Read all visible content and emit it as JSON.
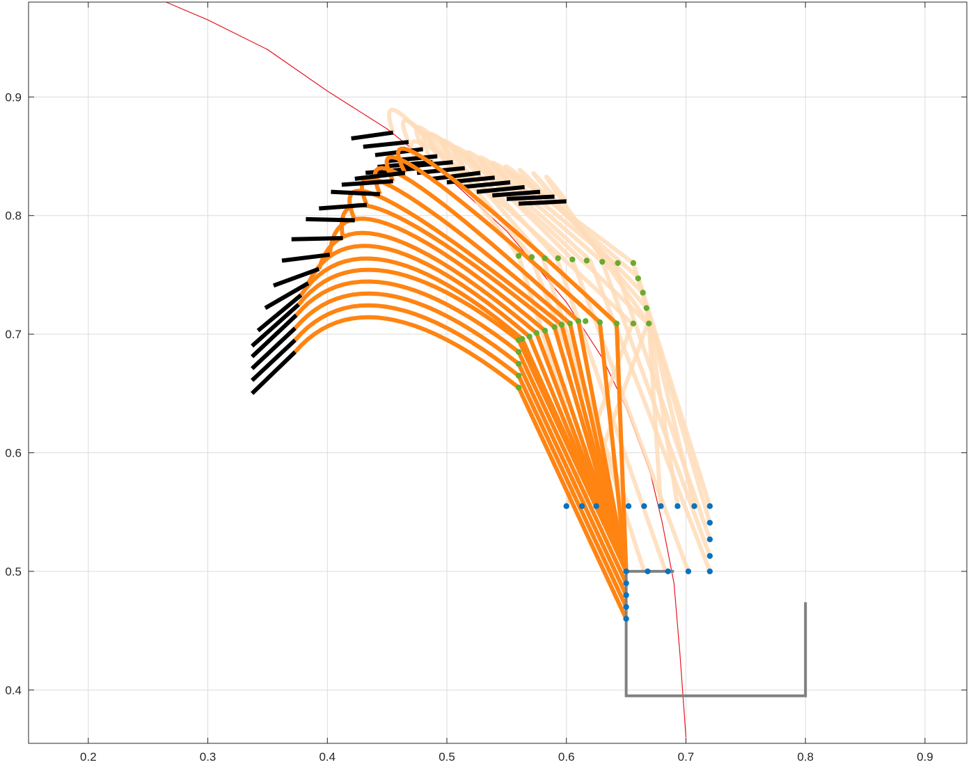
{
  "chart_data": {
    "type": "line",
    "title": "",
    "xlabel": "",
    "ylabel": "",
    "xlim": [
      0.15,
      0.935
    ],
    "ylim": [
      0.355,
      0.98
    ],
    "grid": true,
    "box": true,
    "legend": "none",
    "x_ticks": [
      0.2,
      0.3,
      0.4,
      0.5,
      0.6,
      0.7,
      0.8,
      0.9
    ],
    "y_ticks": [
      0.4,
      0.5,
      0.6,
      0.7,
      0.8,
      0.9
    ],
    "x_tick_labels": [
      "0.2",
      "0.3",
      "0.4",
      "0.5",
      "0.6",
      "0.7",
      "0.8",
      "0.9"
    ],
    "y_tick_labels": [
      "0.4",
      "0.5",
      "0.6",
      "0.7",
      "0.8",
      "0.9"
    ],
    "colors": {
      "reference_curve": "#e8141e",
      "arm_dark": "#ff8412",
      "arm_light": "#ffdcb9",
      "end_link": "#000000",
      "elbow_markers": "#6aaa2e",
      "base_markers": "#0b72bd",
      "obstacle": "#808080"
    },
    "reference_curve": {
      "x": [
        0.265,
        0.3,
        0.35,
        0.4,
        0.45,
        0.5,
        0.55,
        0.6,
        0.63,
        0.65,
        0.67,
        0.68,
        0.69,
        0.695,
        0.7
      ],
      "y": [
        0.98,
        0.965,
        0.94,
        0.905,
        0.873,
        0.833,
        0.787,
        0.727,
        0.68,
        0.638,
        0.584,
        0.542,
        0.49,
        0.43,
        0.36
      ]
    },
    "obstacle": {
      "x": [
        0.69,
        0.65,
        0.65,
        0.8,
        0.8
      ],
      "y": [
        0.5,
        0.5,
        0.395,
        0.395,
        0.474
      ]
    },
    "arm_poses": [
      {
        "base": [
          0.65,
          0.46
        ],
        "elbow": [
          0.56,
          0.655
        ],
        "peak": [
          0.45,
          0.713
        ],
        "wrist": [
          0.373,
          0.685
        ],
        "tip": [
          0.337,
          0.65
        ],
        "light": false
      },
      {
        "base": [
          0.65,
          0.47
        ],
        "elbow": [
          0.56,
          0.665
        ],
        "peak": [
          0.45,
          0.723
        ],
        "wrist": [
          0.373,
          0.695
        ],
        "tip": [
          0.337,
          0.661
        ],
        "light": false
      },
      {
        "base": [
          0.65,
          0.48
        ],
        "elbow": [
          0.56,
          0.675
        ],
        "peak": [
          0.45,
          0.733
        ],
        "wrist": [
          0.373,
          0.705
        ],
        "tip": [
          0.337,
          0.671
        ],
        "light": false
      },
      {
        "base": [
          0.65,
          0.49
        ],
        "elbow": [
          0.56,
          0.685
        ],
        "peak": [
          0.45,
          0.743
        ],
        "wrist": [
          0.374,
          0.716
        ],
        "tip": [
          0.337,
          0.681
        ],
        "light": false
      },
      {
        "base": [
          0.65,
          0.5
        ],
        "elbow": [
          0.56,
          0.695
        ],
        "peak": [
          0.45,
          0.753
        ],
        "wrist": [
          0.376,
          0.725
        ],
        "tip": [
          0.337,
          0.69
        ],
        "light": false
      },
      {
        "base": [
          0.65,
          0.5
        ],
        "elbow": [
          0.563,
          0.696
        ],
        "peak": [
          0.45,
          0.762
        ],
        "wrist": [
          0.378,
          0.733
        ],
        "tip": [
          0.342,
          0.703
        ],
        "light": false
      },
      {
        "base": [
          0.65,
          0.5
        ],
        "elbow": [
          0.569,
          0.698
        ],
        "peak": [
          0.45,
          0.772
        ],
        "wrist": [
          0.384,
          0.743
        ],
        "tip": [
          0.348,
          0.722
        ],
        "light": false
      },
      {
        "base": [
          0.65,
          0.5
        ],
        "elbow": [
          0.575,
          0.701
        ],
        "peak": [
          0.45,
          0.782
        ],
        "wrist": [
          0.393,
          0.755
        ],
        "tip": [
          0.355,
          0.741
        ],
        "light": false
      },
      {
        "base": [
          0.65,
          0.5
        ],
        "elbow": [
          0.582,
          0.703
        ],
        "peak": [
          0.45,
          0.793
        ],
        "wrist": [
          0.402,
          0.767
        ],
        "tip": [
          0.362,
          0.762
        ],
        "light": false
      },
      {
        "base": [
          0.65,
          0.5
        ],
        "elbow": [
          0.59,
          0.706
        ],
        "peak": [
          0.45,
          0.803
        ],
        "wrist": [
          0.413,
          0.781
        ],
        "tip": [
          0.37,
          0.78
        ],
        "light": false
      },
      {
        "base": [
          0.65,
          0.5
        ],
        "elbow": [
          0.596,
          0.708
        ],
        "peak": [
          0.45,
          0.813
        ],
        "wrist": [
          0.423,
          0.796
        ],
        "tip": [
          0.382,
          0.797
        ],
        "light": false
      },
      {
        "base": [
          0.65,
          0.5
        ],
        "elbow": [
          0.603,
          0.709
        ],
        "peak": [
          0.46,
          0.821
        ],
        "wrist": [
          0.433,
          0.809
        ],
        "tip": [
          0.393,
          0.806
        ],
        "light": false
      },
      {
        "base": [
          0.65,
          0.5
        ],
        "elbow": [
          0.61,
          0.711
        ],
        "peak": [
          0.47,
          0.829
        ],
        "wrist": [
          0.444,
          0.818
        ],
        "tip": [
          0.403,
          0.82
        ],
        "light": false
      },
      {
        "base": [
          0.65,
          0.5
        ],
        "elbow": [
          0.628,
          0.71
        ],
        "peak": [
          0.48,
          0.836
        ],
        "wrist": [
          0.455,
          0.829
        ],
        "tip": [
          0.412,
          0.826
        ],
        "light": false
      },
      {
        "base": [
          0.65,
          0.5
        ],
        "elbow": [
          0.642,
          0.709
        ],
        "peak": [
          0.49,
          0.842
        ],
        "wrist": [
          0.465,
          0.836
        ],
        "tip": [
          0.423,
          0.831
        ],
        "light": false
      },
      {
        "base": [
          0.6,
          0.555
        ],
        "elbow": [
          0.655,
          0.709
        ],
        "peak": [
          0.5,
          0.848
        ],
        "wrist": [
          0.477,
          0.84
        ],
        "tip": [
          0.432,
          0.836
        ],
        "light": true
      },
      {
        "base": [
          0.613,
          0.555
        ],
        "elbow": [
          0.668,
          0.709
        ],
        "peak": [
          0.51,
          0.854
        ],
        "wrist": [
          0.488,
          0.845
        ],
        "tip": [
          0.442,
          0.841
        ],
        "light": true
      },
      {
        "base": [
          0.625,
          0.555
        ],
        "elbow": [
          0.56,
          0.766
        ],
        "peak": [
          0.47,
          0.878
        ],
        "wrist": [
          0.455,
          0.87
        ],
        "tip": [
          0.42,
          0.865
        ],
        "light": true
      },
      {
        "base": [
          0.652,
          0.555
        ],
        "elbow": [
          0.57,
          0.766
        ],
        "peak": [
          0.48,
          0.87
        ],
        "wrist": [
          0.468,
          0.862
        ],
        "tip": [
          0.43,
          0.858
        ],
        "light": true
      },
      {
        "base": [
          0.665,
          0.5
        ],
        "elbow": [
          0.58,
          0.765
        ],
        "peak": [
          0.49,
          0.865
        ],
        "wrist": [
          0.48,
          0.856
        ],
        "tip": [
          0.44,
          0.851
        ],
        "light": true
      },
      {
        "base": [
          0.683,
          0.5
        ],
        "elbow": [
          0.592,
          0.764
        ],
        "peak": [
          0.5,
          0.86
        ],
        "wrist": [
          0.492,
          0.85
        ],
        "tip": [
          0.45,
          0.846
        ],
        "light": true
      },
      {
        "base": [
          0.702,
          0.5
        ],
        "elbow": [
          0.605,
          0.763
        ],
        "peak": [
          0.51,
          0.855
        ],
        "wrist": [
          0.505,
          0.845
        ],
        "tip": [
          0.462,
          0.841
        ],
        "light": true
      },
      {
        "base": [
          0.72,
          0.5
        ],
        "elbow": [
          0.62,
          0.762
        ],
        "peak": [
          0.52,
          0.85
        ],
        "wrist": [
          0.515,
          0.84
        ],
        "tip": [
          0.475,
          0.836
        ],
        "light": true
      },
      {
        "base": [
          0.72,
          0.513
        ],
        "elbow": [
          0.63,
          0.761
        ],
        "peak": [
          0.53,
          0.846
        ],
        "wrist": [
          0.528,
          0.836
        ],
        "tip": [
          0.488,
          0.831
        ],
        "light": true
      },
      {
        "base": [
          0.72,
          0.527
        ],
        "elbow": [
          0.64,
          0.76
        ],
        "peak": [
          0.54,
          0.842
        ],
        "wrist": [
          0.54,
          0.832
        ],
        "tip": [
          0.5,
          0.828
        ],
        "light": true
      },
      {
        "base": [
          0.72,
          0.541
        ],
        "elbow": [
          0.656,
          0.76
        ],
        "peak": [
          0.55,
          0.838
        ],
        "wrist": [
          0.553,
          0.828
        ],
        "tip": [
          0.512,
          0.824
        ],
        "light": true
      },
      {
        "base": [
          0.72,
          0.555
        ],
        "elbow": [
          0.66,
          0.748
        ],
        "peak": [
          0.56,
          0.834
        ],
        "wrist": [
          0.565,
          0.824
        ],
        "tip": [
          0.525,
          0.82
        ],
        "light": true
      },
      {
        "base": [
          0.707,
          0.555
        ],
        "elbow": [
          0.664,
          0.735
        ],
        "peak": [
          0.57,
          0.83
        ],
        "wrist": [
          0.578,
          0.82
        ],
        "tip": [
          0.538,
          0.817
        ],
        "light": true
      },
      {
        "base": [
          0.693,
          0.555
        ],
        "elbow": [
          0.667,
          0.722
        ],
        "peak": [
          0.58,
          0.826
        ],
        "wrist": [
          0.59,
          0.816
        ],
        "tip": [
          0.55,
          0.814
        ],
        "light": true
      },
      {
        "base": [
          0.679,
          0.555
        ],
        "elbow": [
          0.669,
          0.709
        ],
        "peak": [
          0.59,
          0.822
        ],
        "wrist": [
          0.6,
          0.812
        ],
        "tip": [
          0.56,
          0.81
        ],
        "light": true
      }
    ],
    "elbow_markers": {
      "x": [
        0.56,
        0.571,
        0.582,
        0.593,
        0.605,
        0.617,
        0.63,
        0.643,
        0.656,
        0.66,
        0.664,
        0.667,
        0.669,
        0.656,
        0.642,
        0.628,
        0.616,
        0.61,
        0.603,
        0.596,
        0.59,
        0.582,
        0.575,
        0.569,
        0.563,
        0.56,
        0.56,
        0.56,
        0.56,
        0.56
      ],
      "y": [
        0.766,
        0.765,
        0.764,
        0.764,
        0.763,
        0.762,
        0.761,
        0.76,
        0.76,
        0.747,
        0.735,
        0.722,
        0.709,
        0.709,
        0.709,
        0.71,
        0.711,
        0.711,
        0.709,
        0.708,
        0.706,
        0.703,
        0.701,
        0.698,
        0.696,
        0.695,
        0.685,
        0.675,
        0.665,
        0.655
      ]
    },
    "base_markers": {
      "x": [
        0.6,
        0.613,
        0.625,
        0.652,
        0.665,
        0.679,
        0.693,
        0.707,
        0.72,
        0.72,
        0.72,
        0.72,
        0.72,
        0.702,
        0.685,
        0.668,
        0.65,
        0.65,
        0.65,
        0.65,
        0.65
      ],
      "y": [
        0.555,
        0.555,
        0.555,
        0.555,
        0.555,
        0.555,
        0.555,
        0.555,
        0.555,
        0.541,
        0.527,
        0.513,
        0.5,
        0.5,
        0.5,
        0.5,
        0.5,
        0.49,
        0.48,
        0.47,
        0.46
      ]
    }
  }
}
